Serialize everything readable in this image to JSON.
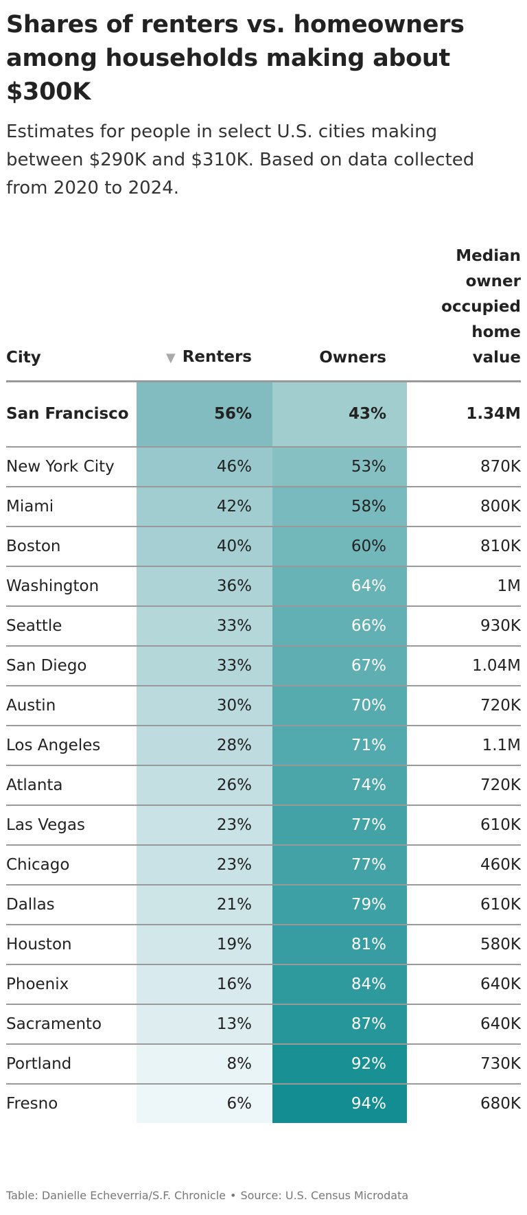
{
  "title": "Shares of renters vs. homeowners among households making about $300K",
  "subtitle_lines": [
    "Estimates for people in select U.S. cities making",
    "between $290K and $310K. Based on data collected",
    "from 2020 to 2024."
  ],
  "colors": {
    "renters_min": "#edf6f8",
    "renters_max": "#83bcc0",
    "owners_min": "#a2cdcf",
    "owners_max": "#138d92",
    "light_text": "#ffffff",
    "dark_text": "#222222"
  },
  "chart_data": {
    "type": "table",
    "columns": [
      "City",
      "Renters",
      "Owners",
      "Median owner occupied home value"
    ],
    "sort_column": "Renters",
    "sort_direction": "descending",
    "rows": [
      {
        "city": "San Francisco",
        "renters": 56,
        "owners": 43,
        "renters_label": "56%",
        "owners_label": "43%",
        "home_value": "1.34M",
        "highlight": true
      },
      {
        "city": "New York City",
        "renters": 46,
        "owners": 53,
        "renters_label": "46%",
        "owners_label": "53%",
        "home_value": "870K"
      },
      {
        "city": "Miami",
        "renters": 42,
        "owners": 58,
        "renters_label": "42%",
        "owners_label": "58%",
        "home_value": "800K"
      },
      {
        "city": "Boston",
        "renters": 40,
        "owners": 60,
        "renters_label": "40%",
        "owners_label": "60%",
        "home_value": "810K"
      },
      {
        "city": "Washington",
        "renters": 36,
        "owners": 64,
        "renters_label": "36%",
        "owners_label": "64%",
        "home_value": "1M"
      },
      {
        "city": "Seattle",
        "renters": 33,
        "owners": 66,
        "renters_label": "33%",
        "owners_label": "66%",
        "home_value": "930K"
      },
      {
        "city": "San Diego",
        "renters": 33,
        "owners": 67,
        "renters_label": "33%",
        "owners_label": "67%",
        "home_value": "1.04M"
      },
      {
        "city": "Austin",
        "renters": 30,
        "owners": 70,
        "renters_label": "30%",
        "owners_label": "70%",
        "home_value": "720K"
      },
      {
        "city": "Los Angeles",
        "renters": 28,
        "owners": 71,
        "renters_label": "28%",
        "owners_label": "71%",
        "home_value": "1.1M"
      },
      {
        "city": "Atlanta",
        "renters": 26,
        "owners": 74,
        "renters_label": "26%",
        "owners_label": "74%",
        "home_value": "720K"
      },
      {
        "city": "Las Vegas",
        "renters": 23,
        "owners": 77,
        "renters_label": "23%",
        "owners_label": "77%",
        "home_value": "610K"
      },
      {
        "city": "Chicago",
        "renters": 23,
        "owners": 77,
        "renters_label": "23%",
        "owners_label": "77%",
        "home_value": "460K"
      },
      {
        "city": "Dallas",
        "renters": 21,
        "owners": 79,
        "renters_label": "21%",
        "owners_label": "79%",
        "home_value": "610K"
      },
      {
        "city": "Houston",
        "renters": 19,
        "owners": 81,
        "renters_label": "19%",
        "owners_label": "81%",
        "home_value": "580K"
      },
      {
        "city": "Phoenix",
        "renters": 16,
        "owners": 84,
        "renters_label": "16%",
        "owners_label": "84%",
        "home_value": "640K"
      },
      {
        "city": "Sacramento",
        "renters": 13,
        "owners": 87,
        "renters_label": "13%",
        "owners_label": "87%",
        "home_value": "640K"
      },
      {
        "city": "Portland",
        "renters": 8,
        "owners": 92,
        "renters_label": "8%",
        "owners_label": "92%",
        "home_value": "730K"
      },
      {
        "city": "Fresno",
        "renters": 6,
        "owners": 94,
        "renters_label": "6%",
        "owners_label": "94%",
        "home_value": "680K"
      }
    ]
  },
  "header": {
    "city": "City",
    "renters": "Renters",
    "owners": "Owners",
    "home_value_lines": [
      "Median",
      "owner",
      "occupied",
      "home",
      "value"
    ]
  },
  "footer": {
    "credit": "Table: Danielle Echeverria/S.F. Chronicle",
    "separator": "•",
    "source": "Source: U.S. Census Microdata"
  }
}
